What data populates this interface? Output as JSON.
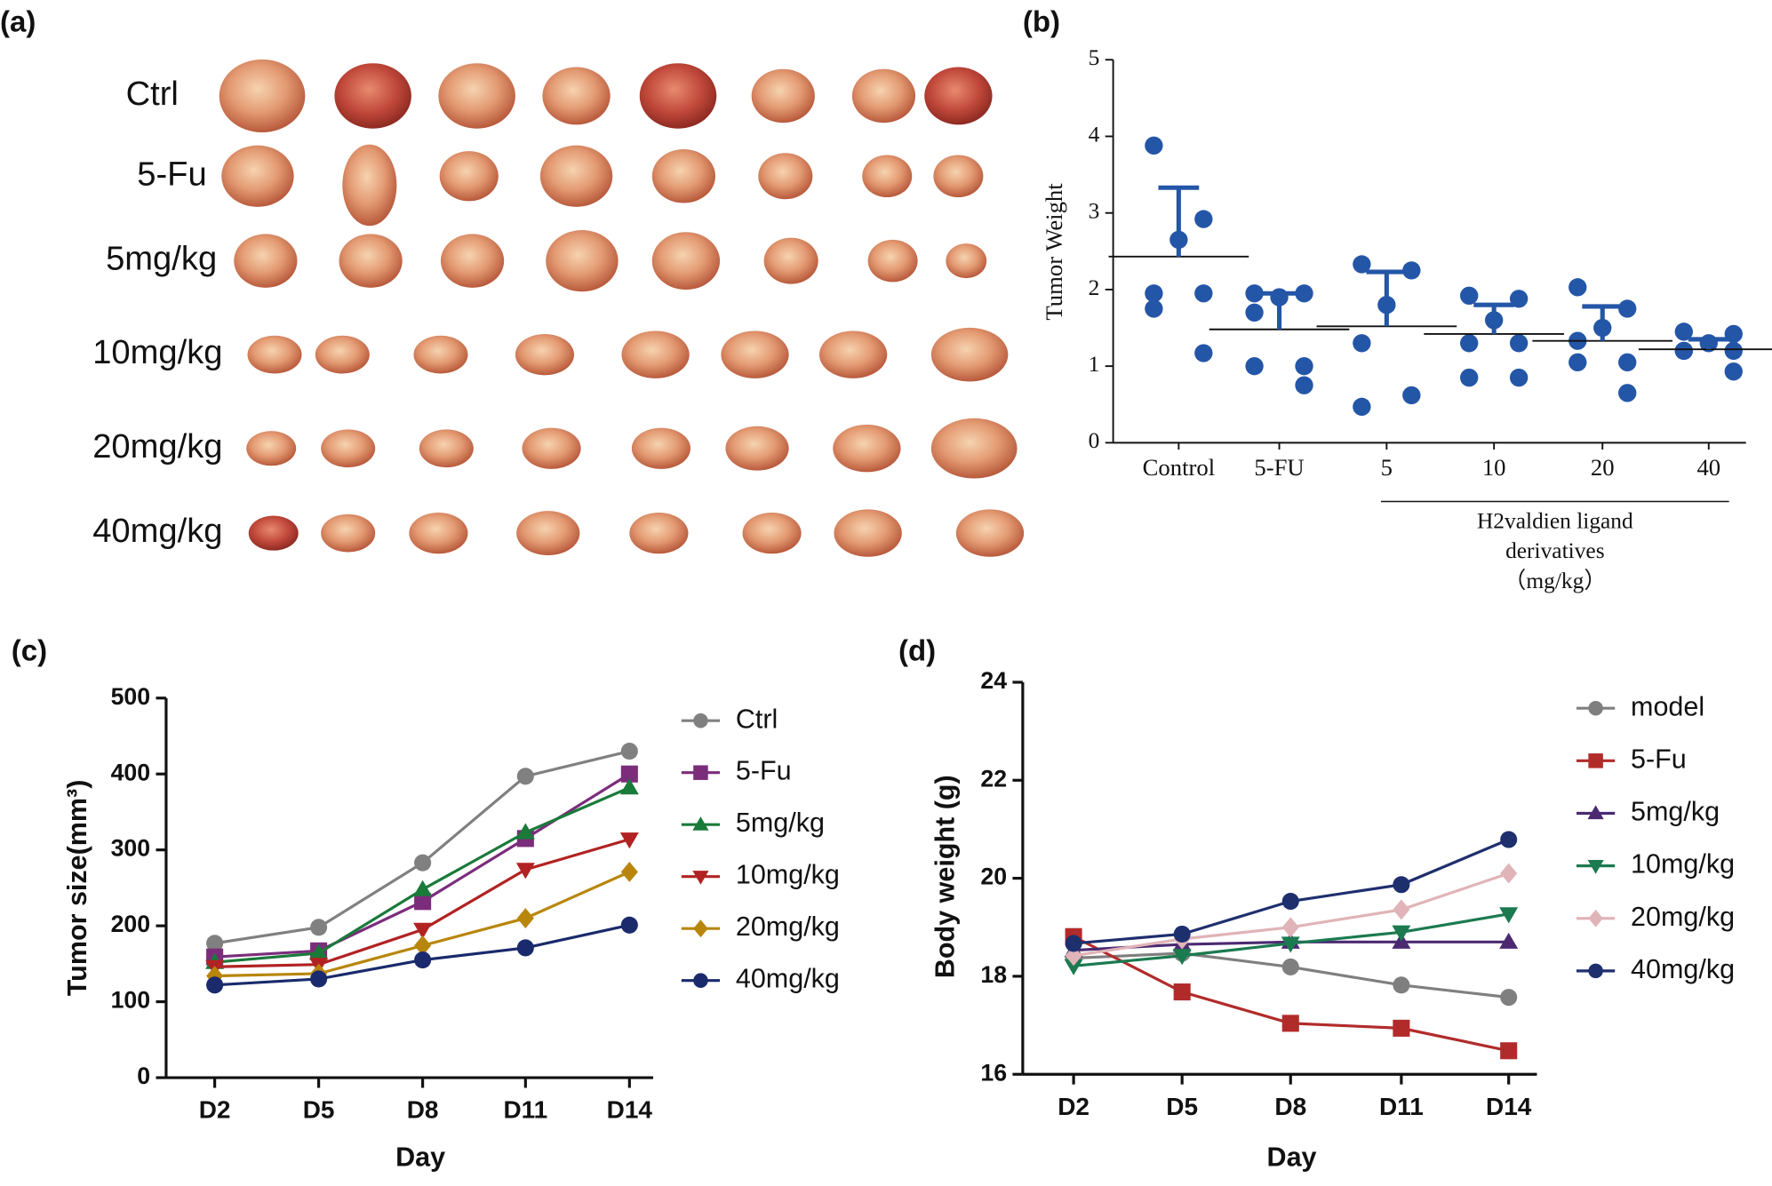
{
  "photo": {
    "label": "(a)",
    "rows": [
      "Ctrl",
      "5-Fu",
      "5mg/kg",
      "10mg/kg",
      "20mg/kg",
      "40mg/kg"
    ]
  },
  "chart_data": [
    {
      "type": "dotplot",
      "label": "(b)",
      "ylabel": "Tumor Weight",
      "categories": [
        "Control",
        "5-FU",
        "5",
        "10",
        "20",
        "40"
      ],
      "points": [
        [
          3.88,
          2.92,
          2.65,
          1.95,
          1.95,
          1.75,
          1.17
        ],
        [
          1.95,
          1.95,
          1.9,
          1.7,
          1.0,
          1.0,
          0.75
        ],
        [
          2.33,
          2.25,
          1.8,
          1.3,
          0.62,
          0.47
        ],
        [
          1.92,
          1.88,
          1.6,
          1.3,
          1.3,
          0.85,
          0.85
        ],
        [
          2.03,
          1.75,
          1.5,
          1.33,
          1.05,
          1.05,
          0.65
        ],
        [
          1.45,
          1.42,
          1.3,
          1.2,
          1.2,
          1.2,
          0.93
        ]
      ],
      "means": [
        2.43,
        1.48,
        1.52,
        1.42,
        1.33,
        1.22
      ],
      "errors": [
        0.9,
        0.47,
        0.71,
        0.38,
        0.45,
        0.13
      ],
      "color": "#2456a8",
      "ylim": [
        0,
        5
      ],
      "yticks": [
        0,
        1,
        2,
        3,
        4,
        5
      ],
      "annotation": [
        "H2valdien ligand",
        "derivatives",
        "（mg/kg）"
      ]
    },
    {
      "type": "line",
      "label": "(c)",
      "ylabel": "Tumor size(mm³)",
      "xlabel": "Day",
      "categories": [
        "D2",
        "D5",
        "D8",
        "D11",
        "D14"
      ],
      "ylim": [
        0,
        500
      ],
      "yticks": [
        0,
        100,
        200,
        300,
        400,
        500
      ],
      "series": [
        {
          "name": "Ctrl",
          "color": "#808080",
          "marker": "circle",
          "values": [
            177,
            198,
            283,
            397,
            430
          ]
        },
        {
          "name": "5-Fu",
          "color": "#7b2d7b",
          "marker": "square",
          "values": [
            159,
            167,
            232,
            315,
            400
          ]
        },
        {
          "name": "5mg/kg",
          "color": "#1a7a3a",
          "marker": "triangle-up",
          "values": [
            152,
            164,
            248,
            323,
            382
          ]
        },
        {
          "name": "10mg/kg",
          "color": "#b22222",
          "marker": "triangle-down",
          "values": [
            146,
            149,
            195,
            274,
            314
          ]
        },
        {
          "name": "20mg/kg",
          "color": "#b8860b",
          "marker": "diamond",
          "values": [
            134,
            137,
            174,
            210,
            271
          ]
        },
        {
          "name": "40mg/kg",
          "color": "#1a2a6c",
          "marker": "circle",
          "values": [
            122,
            130,
            155,
            171,
            201
          ]
        }
      ]
    },
    {
      "type": "line",
      "label": "(d)",
      "ylabel": "Body weight (g)",
      "xlabel": "Day",
      "categories": [
        "D2",
        "D5",
        "D8",
        "D11",
        "D14"
      ],
      "ylim": [
        16,
        24
      ],
      "yticks": [
        16,
        18,
        20,
        22,
        24
      ],
      "series": [
        {
          "name": "model",
          "color": "#7f7f7f",
          "marker": "circle",
          "values": [
            18.37,
            18.47,
            18.19,
            17.82,
            17.57
          ]
        },
        {
          "name": "5-Fu",
          "color": "#b22b2b",
          "marker": "square",
          "values": [
            18.81,
            17.68,
            17.04,
            16.94,
            16.48
          ]
        },
        {
          "name": "5mg/kg",
          "color": "#4b2a72",
          "marker": "triangle-up",
          "values": [
            18.53,
            18.65,
            18.7,
            18.7,
            18.7
          ]
        },
        {
          "name": "10mg/kg",
          "color": "#1b7a50",
          "marker": "triangle-down",
          "values": [
            18.21,
            18.42,
            18.67,
            18.9,
            19.27
          ]
        },
        {
          "name": "20mg/kg",
          "color": "#e0b4b8",
          "marker": "diamond",
          "values": [
            18.42,
            18.76,
            19.0,
            19.36,
            20.1
          ]
        },
        {
          "name": "40mg/kg",
          "color": "#1e2f6e",
          "marker": "circle",
          "values": [
            18.67,
            18.86,
            19.53,
            19.87,
            20.79
          ]
        }
      ]
    }
  ]
}
